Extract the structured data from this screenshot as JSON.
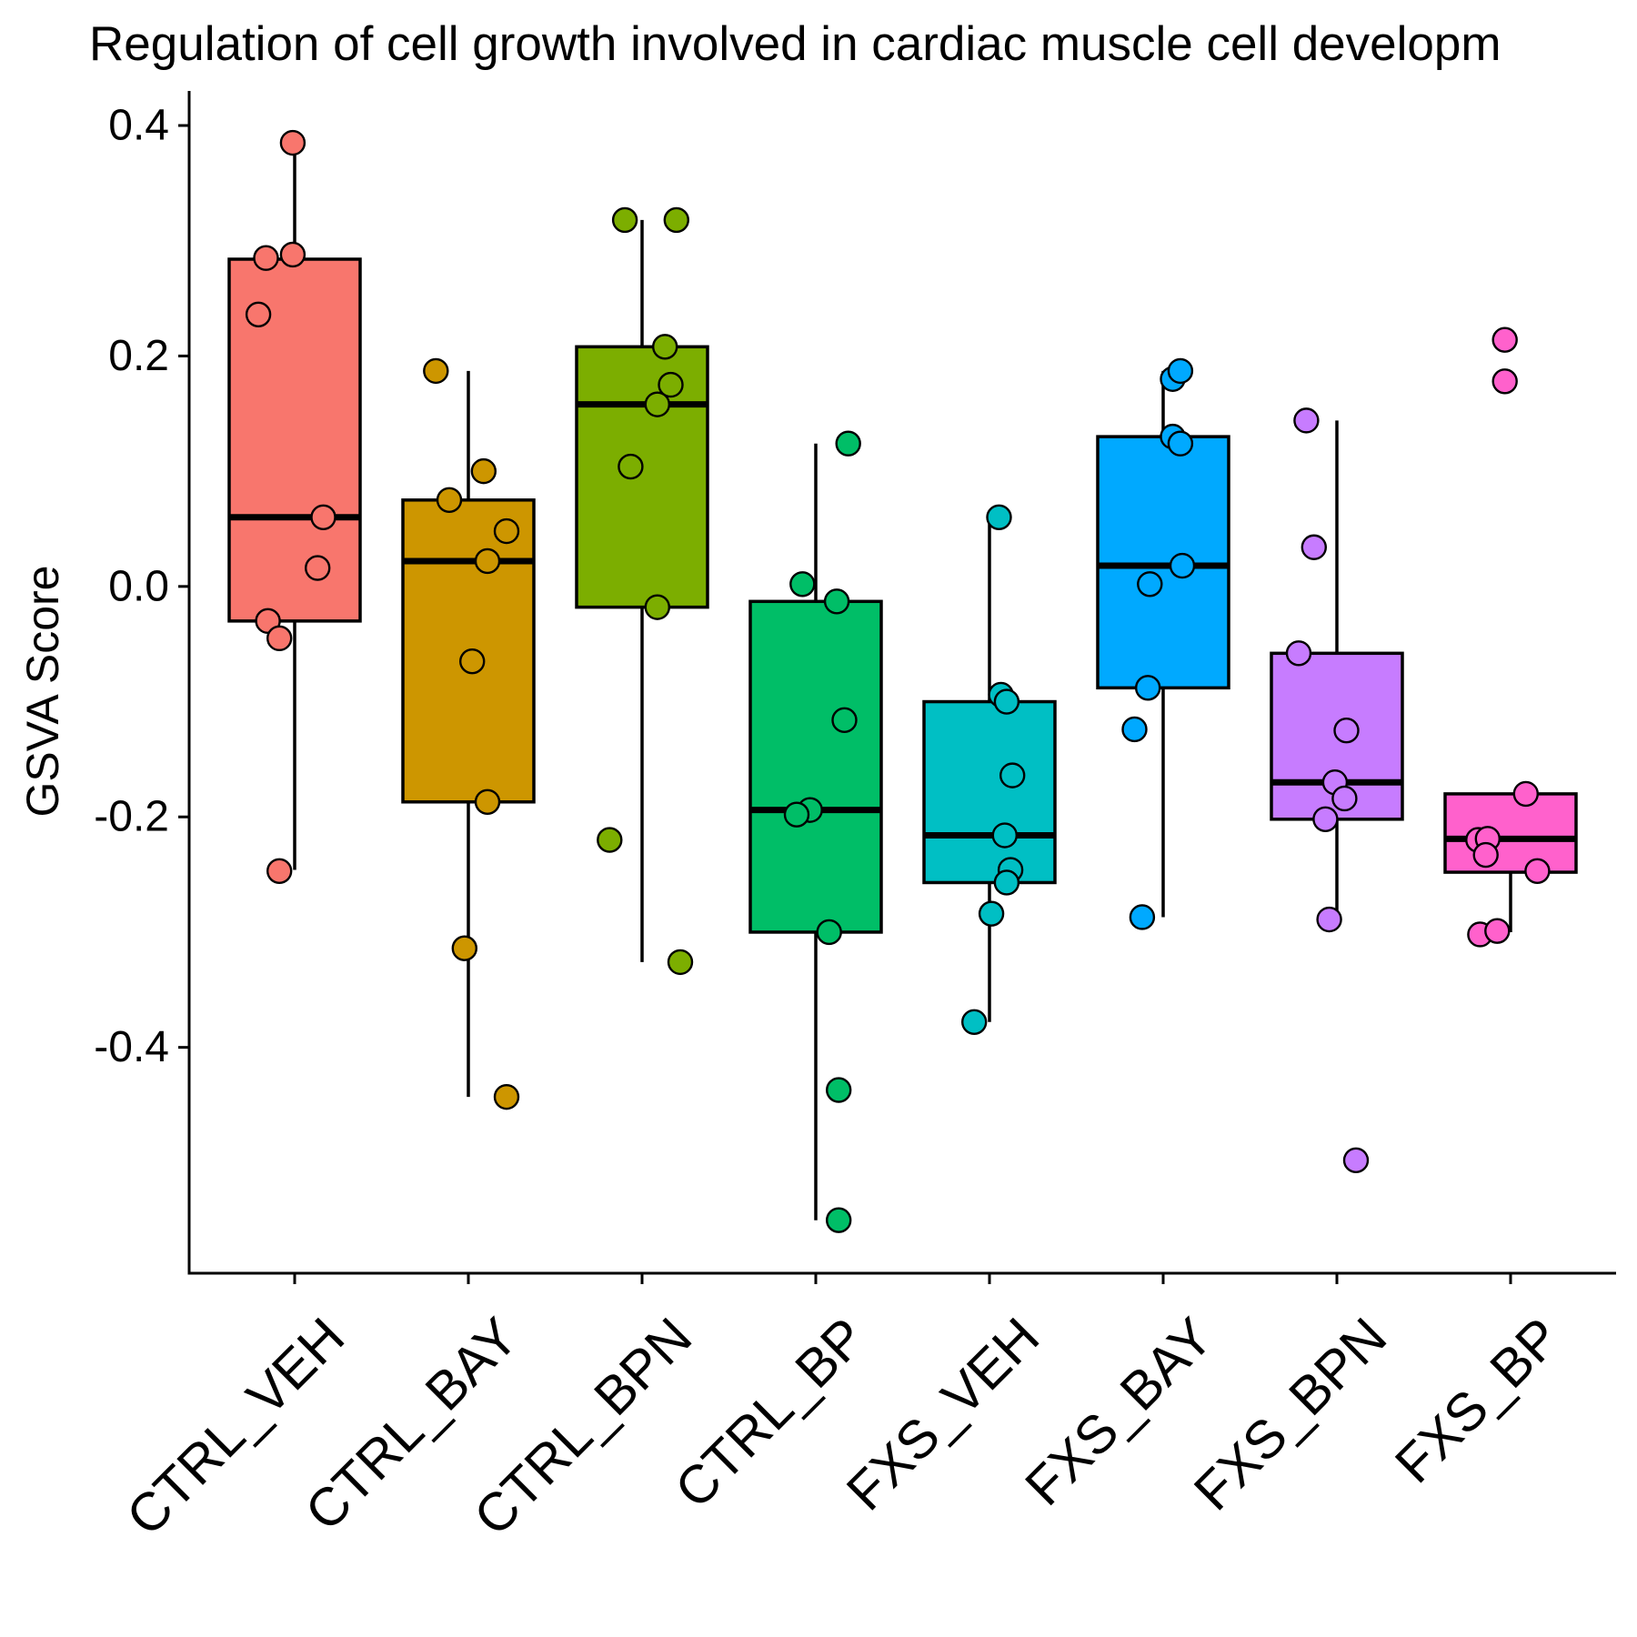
{
  "chart_data": {
    "type": "box",
    "title": "Regulation of cell growth involved in cardiac muscle cell developm",
    "xlabel": "",
    "ylabel": "GSVA Score",
    "ylim": [
      -0.596,
      0.43
    ],
    "yticks": [
      0.4,
      0.2,
      0.0,
      -0.2,
      -0.4
    ],
    "ytick_labels": [
      "0.4",
      "0.2",
      "0.0",
      "-0.2",
      "-0.4"
    ],
    "grid": false,
    "legend": "none",
    "categories": [
      "CTRL_VEH",
      "CTRL_BAY",
      "CTRL_BPN",
      "CTRL_BP",
      "FXS_VEH",
      "FXS_BAY",
      "FXS_BPN",
      "FXS_BP"
    ],
    "colors": [
      "#F8766D",
      "#CD9600",
      "#7CAE00",
      "#00BE67",
      "#00BFC4",
      "#00A9FF",
      "#C77CFF",
      "#FF61CC"
    ],
    "series": [
      {
        "category": "CTRL_VEH",
        "q1": -0.03,
        "median": 0.06,
        "q3": 0.284,
        "whisker_low": -0.246,
        "whisker_high": 0.385,
        "points": [
          {
            "x": -0.01,
            "y": 0.385
          },
          {
            "x": -0.15,
            "y": 0.285
          },
          {
            "x": -0.01,
            "y": 0.288
          },
          {
            "x": -0.19,
            "y": 0.236
          },
          {
            "x": 0.15,
            "y": 0.06
          },
          {
            "x": 0.12,
            "y": 0.016
          },
          {
            "x": -0.14,
            "y": -0.03
          },
          {
            "x": -0.08,
            "y": -0.045
          },
          {
            "x": -0.08,
            "y": -0.247
          }
        ]
      },
      {
        "category": "CTRL_BAY",
        "q1": -0.187,
        "median": 0.022,
        "q3": 0.075,
        "whisker_low": -0.443,
        "whisker_high": 0.187,
        "points": [
          {
            "x": -0.17,
            "y": 0.187
          },
          {
            "x": 0.08,
            "y": 0.1
          },
          {
            "x": -0.1,
            "y": 0.075
          },
          {
            "x": 0.2,
            "y": 0.048
          },
          {
            "x": 0.1,
            "y": 0.022
          },
          {
            "x": 0.02,
            "y": -0.065
          },
          {
            "x": 0.1,
            "y": -0.187
          },
          {
            "x": -0.02,
            "y": -0.314
          },
          {
            "x": 0.2,
            "y": -0.443
          }
        ]
      },
      {
        "category": "CTRL_BPN",
        "q1": -0.018,
        "median": 0.158,
        "q3": 0.208,
        "whisker_low": -0.326,
        "whisker_high": 0.318,
        "points": [
          {
            "x": -0.09,
            "y": 0.318
          },
          {
            "x": 0.18,
            "y": 0.318
          },
          {
            "x": 0.12,
            "y": 0.208
          },
          {
            "x": 0.15,
            "y": 0.175
          },
          {
            "x": 0.08,
            "y": 0.158
          },
          {
            "x": -0.06,
            "y": 0.104
          },
          {
            "x": 0.08,
            "y": -0.018
          },
          {
            "x": -0.17,
            "y": -0.22
          },
          {
            "x": 0.2,
            "y": -0.326
          }
        ]
      },
      {
        "category": "CTRL_BP",
        "q1": -0.3,
        "median": -0.194,
        "q3": -0.013,
        "whisker_low": -0.55,
        "whisker_high": 0.124,
        "points": [
          {
            "x": 0.17,
            "y": 0.124
          },
          {
            "x": -0.07,
            "y": 0.002
          },
          {
            "x": 0.11,
            "y": -0.013
          },
          {
            "x": 0.15,
            "y": -0.116
          },
          {
            "x": -0.03,
            "y": -0.194
          },
          {
            "x": -0.1,
            "y": -0.198
          },
          {
            "x": 0.07,
            "y": -0.3
          },
          {
            "x": 0.12,
            "y": -0.437
          },
          {
            "x": 0.12,
            "y": -0.55
          }
        ]
      },
      {
        "category": "FXS_VEH",
        "q1": -0.257,
        "median": -0.216,
        "q3": -0.1,
        "whisker_low": -0.378,
        "whisker_high": 0.06,
        "points": [
          {
            "x": 0.05,
            "y": 0.06
          },
          {
            "x": 0.06,
            "y": -0.094
          },
          {
            "x": 0.09,
            "y": -0.1
          },
          {
            "x": 0.12,
            "y": -0.164
          },
          {
            "x": 0.08,
            "y": -0.216
          },
          {
            "x": 0.11,
            "y": -0.246
          },
          {
            "x": 0.09,
            "y": -0.257
          },
          {
            "x": 0.01,
            "y": -0.284
          },
          {
            "x": -0.08,
            "y": -0.378
          }
        ]
      },
      {
        "category": "FXS_BAY",
        "q1": -0.088,
        "median": 0.018,
        "q3": 0.13,
        "whisker_low": -0.287,
        "whisker_high": 0.187,
        "points": [
          {
            "x": 0.05,
            "y": 0.18
          },
          {
            "x": 0.09,
            "y": 0.187
          },
          {
            "x": 0.05,
            "y": 0.13
          },
          {
            "x": 0.09,
            "y": 0.124
          },
          {
            "x": 0.1,
            "y": 0.018
          },
          {
            "x": -0.07,
            "y": 0.002
          },
          {
            "x": -0.08,
            "y": -0.088
          },
          {
            "x": -0.15,
            "y": -0.124
          },
          {
            "x": -0.11,
            "y": -0.287
          }
        ]
      },
      {
        "category": "FXS_BPN",
        "q1": -0.202,
        "median": -0.17,
        "q3": -0.058,
        "whisker_low": -0.289,
        "whisker_high": 0.144,
        "points": [
          {
            "x": -0.16,
            "y": 0.144
          },
          {
            "x": -0.12,
            "y": 0.034
          },
          {
            "x": -0.2,
            "y": -0.058
          },
          {
            "x": 0.05,
            "y": -0.125
          },
          {
            "x": -0.01,
            "y": -0.17
          },
          {
            "x": 0.04,
            "y": -0.184
          },
          {
            "x": -0.06,
            "y": -0.202
          },
          {
            "x": -0.04,
            "y": -0.289
          },
          {
            "x": 0.1,
            "y": -0.498
          }
        ]
      },
      {
        "category": "FXS_BP",
        "q1": -0.248,
        "median": -0.219,
        "q3": -0.18,
        "whisker_low": -0.3,
        "whisker_high": -0.18,
        "points": [
          {
            "x": -0.03,
            "y": 0.214
          },
          {
            "x": -0.03,
            "y": 0.178
          },
          {
            "x": 0.08,
            "y": -0.18
          },
          {
            "x": -0.17,
            "y": -0.22
          },
          {
            "x": -0.12,
            "y": -0.219
          },
          {
            "x": -0.13,
            "y": -0.233
          },
          {
            "x": 0.14,
            "y": -0.247
          },
          {
            "x": -0.16,
            "y": -0.302
          },
          {
            "x": -0.07,
            "y": -0.299
          }
        ]
      }
    ]
  }
}
